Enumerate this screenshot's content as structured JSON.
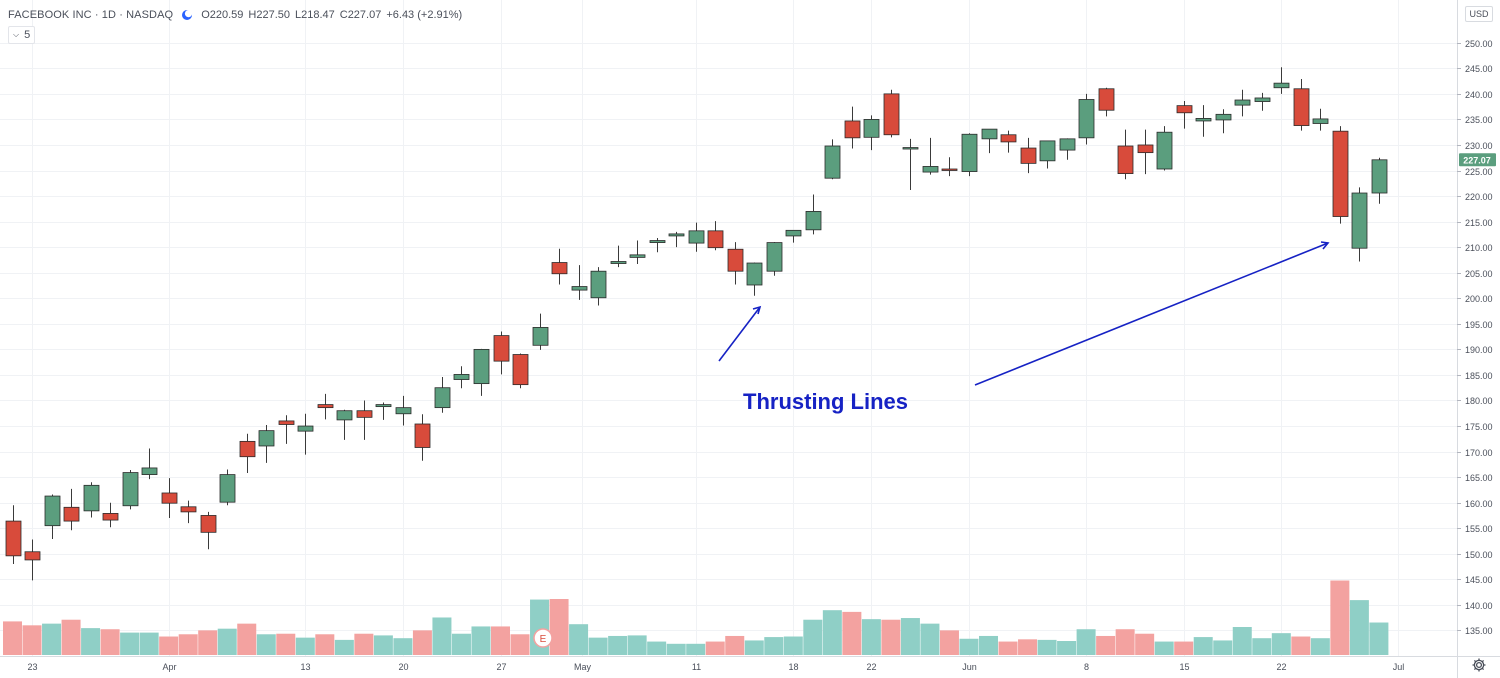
{
  "header": {
    "symbol": "FACEBOOK INC · 1D · NASDAQ",
    "open": "O220.59",
    "high": "H227.50",
    "low": "L218.47",
    "close": "C227.07",
    "change": "+6.43 (+2.91%)"
  },
  "interval": {
    "label": "5"
  },
  "currency": "USD",
  "last_price_label": "227.07",
  "earnings_marker": "E",
  "annotation": {
    "text": "Thrusting Lines"
  },
  "colors": {
    "up": "#5b9e7e",
    "down": "#d84b3b",
    "vol_up": "#8fcfc6",
    "vol_down": "#f3a2a0",
    "arrow": "#1622c4",
    "grid": "#f0f2f5"
  },
  "chart_data": {
    "type": "candlestick",
    "title": "",
    "price_axis": {
      "min": 130,
      "max": 252.5,
      "ticks": [
        135,
        140,
        145,
        150,
        155,
        160,
        165,
        170,
        175,
        180,
        185,
        190,
        195,
        200,
        205,
        210,
        215,
        220,
        225,
        230,
        235,
        240,
        245,
        250
      ]
    },
    "time_axis_labels": [
      "23",
      "Apr",
      "13",
      "20",
      "27",
      "May",
      "11",
      "18",
      "22",
      "Jun",
      "8",
      "15",
      "22",
      "Jul"
    ],
    "candles": [
      {
        "o": 156.4,
        "h": 159.5,
        "l": 148.0,
        "c": 149.6
      },
      {
        "o": 150.4,
        "h": 152.8,
        "l": 144.8,
        "c": 148.8
      },
      {
        "o": 155.5,
        "h": 161.6,
        "l": 152.9,
        "c": 161.3
      },
      {
        "o": 159.1,
        "h": 162.7,
        "l": 154.6,
        "c": 156.4
      },
      {
        "o": 158.4,
        "h": 164.0,
        "l": 157.1,
        "c": 163.4
      },
      {
        "o": 157.9,
        "h": 160.0,
        "l": 155.2,
        "c": 156.6
      },
      {
        "o": 159.4,
        "h": 166.4,
        "l": 158.7,
        "c": 165.9
      },
      {
        "o": 165.5,
        "h": 170.6,
        "l": 164.6,
        "c": 166.8
      },
      {
        "o": 161.9,
        "h": 164.8,
        "l": 157.0,
        "c": 159.9
      },
      {
        "o": 159.2,
        "h": 160.4,
        "l": 156.0,
        "c": 158.2
      },
      {
        "o": 157.5,
        "h": 158.2,
        "l": 150.9,
        "c": 154.2
      },
      {
        "o": 160.1,
        "h": 166.5,
        "l": 159.5,
        "c": 165.5
      },
      {
        "o": 172.0,
        "h": 173.5,
        "l": 165.8,
        "c": 169.0
      },
      {
        "o": 171.1,
        "h": 175.2,
        "l": 167.8,
        "c": 174.1
      },
      {
        "o": 176.0,
        "h": 177.1,
        "l": 171.5,
        "c": 175.3
      },
      {
        "o": 174.0,
        "h": 177.4,
        "l": 169.4,
        "c": 175.0
      },
      {
        "o": 179.2,
        "h": 181.3,
        "l": 176.3,
        "c": 178.6
      },
      {
        "o": 176.2,
        "h": 178.2,
        "l": 172.3,
        "c": 178.0
      },
      {
        "o": 178.0,
        "h": 180.0,
        "l": 172.3,
        "c": 176.7
      },
      {
        "o": 178.8,
        "h": 179.6,
        "l": 176.2,
        "c": 179.2
      },
      {
        "o": 177.4,
        "h": 180.9,
        "l": 175.1,
        "c": 178.6
      },
      {
        "o": 175.4,
        "h": 177.3,
        "l": 168.2,
        "c": 170.8
      },
      {
        "o": 178.6,
        "h": 184.6,
        "l": 177.6,
        "c": 182.5
      },
      {
        "o": 184.1,
        "h": 186.7,
        "l": 182.4,
        "c": 185.1
      },
      {
        "o": 183.3,
        "h": 190.1,
        "l": 180.9,
        "c": 190.0
      },
      {
        "o": 192.7,
        "h": 193.5,
        "l": 185.1,
        "c": 187.7
      },
      {
        "o": 189.0,
        "h": 189.2,
        "l": 182.4,
        "c": 183.1
      },
      {
        "o": 190.8,
        "h": 197.0,
        "l": 189.9,
        "c": 194.3
      },
      {
        "o": 207.0,
        "h": 209.7,
        "l": 202.7,
        "c": 204.8
      },
      {
        "o": 201.6,
        "h": 206.5,
        "l": 199.7,
        "c": 202.3
      },
      {
        "o": 200.1,
        "h": 206.1,
        "l": 198.6,
        "c": 205.3
      },
      {
        "o": 206.8,
        "h": 210.3,
        "l": 206.1,
        "c": 207.2
      },
      {
        "o": 208.0,
        "h": 211.3,
        "l": 206.7,
        "c": 208.5
      },
      {
        "o": 210.9,
        "h": 211.8,
        "l": 209.0,
        "c": 211.3
      },
      {
        "o": 212.2,
        "h": 213.0,
        "l": 210.0,
        "c": 212.6
      },
      {
        "o": 210.8,
        "h": 214.8,
        "l": 209.1,
        "c": 213.2
      },
      {
        "o": 213.2,
        "h": 215.1,
        "l": 209.4,
        "c": 209.9
      },
      {
        "o": 209.6,
        "h": 211.0,
        "l": 202.7,
        "c": 205.3
      },
      {
        "o": 202.6,
        "h": 207.0,
        "l": 200.5,
        "c": 206.9
      },
      {
        "o": 205.3,
        "h": 211.0,
        "l": 204.4,
        "c": 210.9
      },
      {
        "o": 212.2,
        "h": 213.2,
        "l": 210.9,
        "c": 213.3
      },
      {
        "o": 213.4,
        "h": 220.3,
        "l": 212.5,
        "c": 217.0
      },
      {
        "o": 223.5,
        "h": 231.1,
        "l": 223.3,
        "c": 229.8
      },
      {
        "o": 234.7,
        "h": 237.5,
        "l": 229.3,
        "c": 231.4
      },
      {
        "o": 231.5,
        "h": 235.8,
        "l": 229.0,
        "c": 235.0
      },
      {
        "o": 240.0,
        "h": 240.8,
        "l": 231.5,
        "c": 232.0
      },
      {
        "o": 229.5,
        "h": 231.2,
        "l": 221.2,
        "c": 229.5
      },
      {
        "o": 224.7,
        "h": 231.4,
        "l": 224.2,
        "c": 225.8
      },
      {
        "o": 225.3,
        "h": 227.6,
        "l": 223.9,
        "c": 225.2
      },
      {
        "o": 224.8,
        "h": 232.3,
        "l": 223.9,
        "c": 232.1
      },
      {
        "o": 231.2,
        "h": 232.8,
        "l": 228.4,
        "c": 233.1
      },
      {
        "o": 232.0,
        "h": 232.8,
        "l": 228.5,
        "c": 230.6
      },
      {
        "o": 229.4,
        "h": 231.4,
        "l": 224.5,
        "c": 226.4
      },
      {
        "o": 226.9,
        "h": 230.8,
        "l": 225.4,
        "c": 230.8
      },
      {
        "o": 229.0,
        "h": 231.3,
        "l": 227.1,
        "c": 231.2
      },
      {
        "o": 231.4,
        "h": 240.0,
        "l": 230.1,
        "c": 238.9
      },
      {
        "o": 241.0,
        "h": 241.2,
        "l": 235.6,
        "c": 236.8
      },
      {
        "o": 229.8,
        "h": 233.0,
        "l": 223.3,
        "c": 224.4
      },
      {
        "o": 230.0,
        "h": 233.0,
        "l": 224.3,
        "c": 228.5
      },
      {
        "o": 225.3,
        "h": 233.7,
        "l": 225.0,
        "c": 232.5
      },
      {
        "o": 237.7,
        "h": 238.6,
        "l": 233.2,
        "c": 236.3
      },
      {
        "o": 234.7,
        "h": 237.8,
        "l": 231.6,
        "c": 235.2
      },
      {
        "o": 234.9,
        "h": 237.0,
        "l": 232.3,
        "c": 236.0
      },
      {
        "o": 237.8,
        "h": 240.8,
        "l": 235.6,
        "c": 238.8
      },
      {
        "o": 238.5,
        "h": 240.2,
        "l": 236.7,
        "c": 239.2
      },
      {
        "o": 241.2,
        "h": 245.2,
        "l": 240.0,
        "c": 242.1
      },
      {
        "o": 241.0,
        "h": 242.9,
        "l": 232.8,
        "c": 233.8
      },
      {
        "o": 234.2,
        "h": 237.1,
        "l": 232.8,
        "c": 235.1
      },
      {
        "o": 232.7,
        "h": 233.7,
        "l": 214.6,
        "c": 216.0
      },
      {
        "o": 209.8,
        "h": 221.7,
        "l": 207.2,
        "c": 220.6
      },
      {
        "o": 220.6,
        "h": 227.5,
        "l": 218.5,
        "c": 227.1
      }
    ],
    "volume_rel": [
      0.6,
      0.53,
      0.56,
      0.63,
      0.48,
      0.46,
      0.4,
      0.4,
      0.33,
      0.37,
      0.44,
      0.47,
      0.56,
      0.37,
      0.38,
      0.31,
      0.37,
      0.27,
      0.38,
      0.35,
      0.3,
      0.44,
      0.67,
      0.38,
      0.51,
      0.51,
      0.37,
      0.99,
      1.0,
      0.55,
      0.31,
      0.34,
      0.35,
      0.24,
      0.2,
      0.2,
      0.24,
      0.34,
      0.26,
      0.32,
      0.33,
      0.63,
      0.8,
      0.77,
      0.64,
      0.63,
      0.66,
      0.56,
      0.44,
      0.29,
      0.34,
      0.24,
      0.28,
      0.27,
      0.25,
      0.46,
      0.34,
      0.46,
      0.38,
      0.24,
      0.24,
      0.32,
      0.26,
      0.5,
      0.3,
      0.39,
      0.33,
      0.3,
      1.33,
      0.98,
      0.58
    ]
  }
}
